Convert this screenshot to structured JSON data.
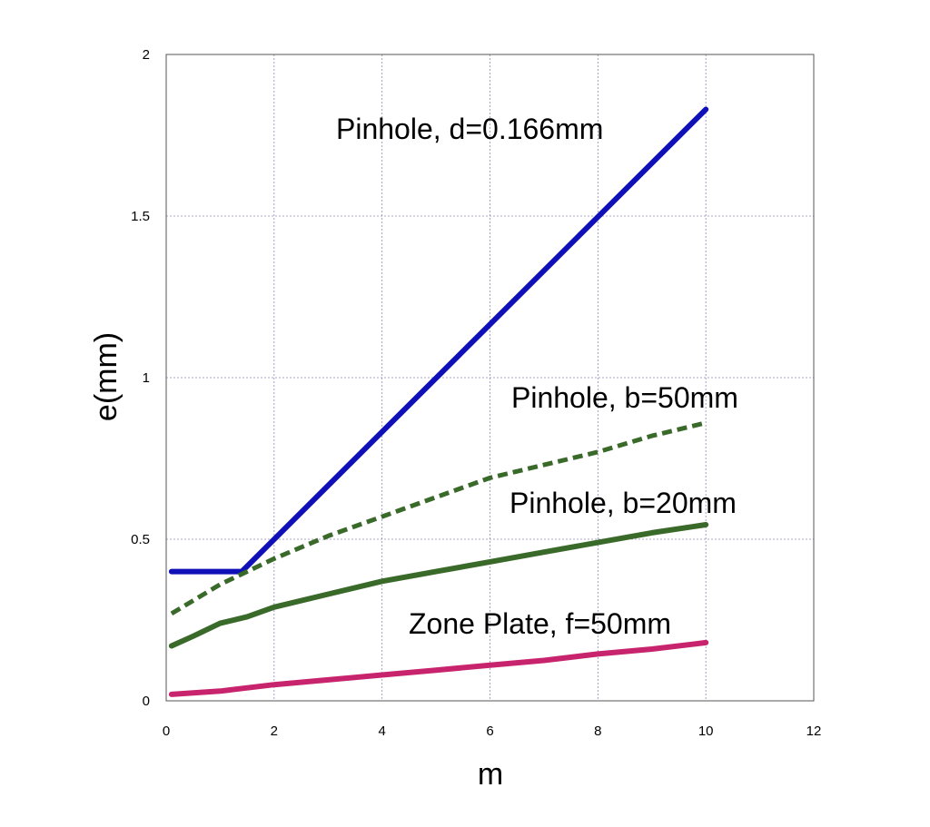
{
  "chart_data": {
    "type": "line",
    "title": "",
    "xlabel": "m",
    "ylabel": "e(mm)",
    "xlim": [
      0,
      12
    ],
    "ylim": [
      0,
      2
    ],
    "xticks": [
      0,
      2,
      4,
      6,
      8,
      10,
      12
    ],
    "yticks": [
      0,
      0.5,
      1,
      1.5,
      2
    ],
    "xtick_labels": [
      "0",
      "2",
      "4",
      "6",
      "8",
      "10",
      "12"
    ],
    "ytick_labels": [
      "0",
      "0.5",
      "1",
      "1.5",
      "2"
    ],
    "grid": true,
    "legend": "none",
    "series": [
      {
        "name": "Pinhole, d=0.166mm",
        "color": "#1010b8",
        "style": "solid",
        "x": [
          0.1,
          1.4,
          10
        ],
        "y": [
          0.4,
          0.4,
          1.83
        ]
      },
      {
        "name": "Pinhole, b=50mm",
        "color": "#3a6a2a",
        "style": "dashed",
        "x": [
          0.1,
          0.5,
          1,
          1.5,
          2,
          3,
          4,
          5,
          6,
          7,
          8,
          9,
          10
        ],
        "y": [
          0.27,
          0.31,
          0.36,
          0.4,
          0.44,
          0.51,
          0.57,
          0.63,
          0.69,
          0.73,
          0.77,
          0.82,
          0.86
        ]
      },
      {
        "name": "Pinhole, b=20mm",
        "color": "#3a6a2a",
        "style": "solid",
        "x": [
          0.1,
          0.5,
          1,
          1.5,
          2,
          3,
          4,
          5,
          6,
          7,
          8,
          9,
          10
        ],
        "y": [
          0.17,
          0.2,
          0.24,
          0.26,
          0.29,
          0.33,
          0.37,
          0.4,
          0.43,
          0.46,
          0.49,
          0.52,
          0.545
        ]
      },
      {
        "name": "Zone Plate, f=50mm",
        "color": "#c8246e",
        "style": "solid",
        "x": [
          0.1,
          1,
          2,
          3,
          4,
          5,
          6,
          7,
          8,
          9,
          10
        ],
        "y": [
          0.02,
          0.03,
          0.05,
          0.065,
          0.08,
          0.095,
          0.11,
          0.125,
          0.145,
          0.16,
          0.18
        ]
      }
    ],
    "annotations": [
      {
        "text": "Pinhole, d=0.166mm",
        "series": 0
      },
      {
        "text": "Pinhole, b=50mm",
        "series": 1
      },
      {
        "text": "Pinhole, b=20mm",
        "series": 2
      },
      {
        "text": "Zone Plate, f=50mm",
        "series": 3
      }
    ]
  }
}
